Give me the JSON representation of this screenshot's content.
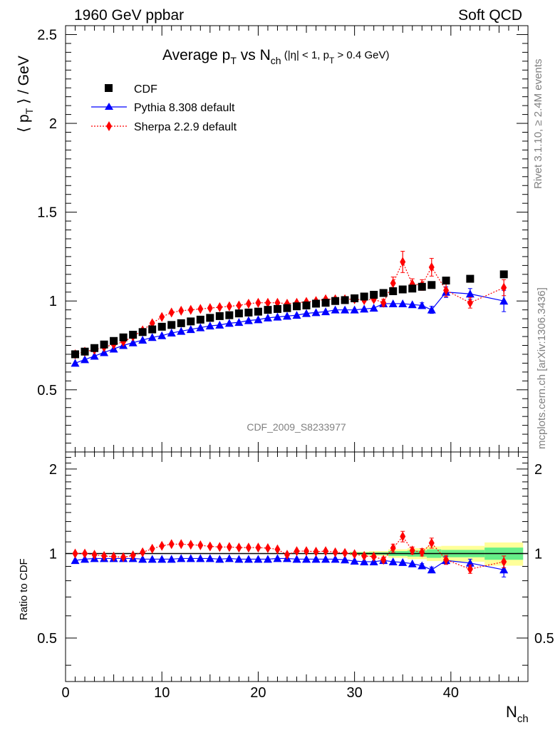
{
  "header": {
    "left": "1960 GeV ppbar",
    "right": "Soft QCD"
  },
  "side": {
    "rivet": "Rivet 3.1.10, ≥ 2.4M events",
    "mcplots": "mcplots.cern.ch [arXiv:1306.3436]"
  },
  "chart_data": {
    "type": "scatter",
    "title": {
      "main": "Average p",
      "sub_T": "T",
      "vs": " vs N",
      "sub_ch": "ch",
      "cuts_a": " (|η| < 1, p",
      "cuts_sub": "T",
      "cuts_b": " > 0.4 GeV)"
    },
    "analysis_label": "CDF_2009_S8233977",
    "xlabel": {
      "main": "N",
      "sub": "ch"
    },
    "ylabel": {
      "pre": "⟨ p",
      "sub": "T",
      "post": " ⟩ / GeV"
    },
    "ratio_ylabel": "Ratio to CDF",
    "xlim": [
      0,
      48
    ],
    "ylim": [
      0.15,
      2.55
    ],
    "ratio_ylim": [
      0.35,
      2.3
    ],
    "x_ticks": [
      "0",
      "10",
      "20",
      "30",
      "40"
    ],
    "y_ticks": [
      "0.5",
      "1",
      "1.5",
      "2",
      "2.5"
    ],
    "ratio_ticks": [
      "0.5",
      "1",
      "2"
    ],
    "legend": [
      {
        "name": "CDF",
        "color": "#000000",
        "marker": "square"
      },
      {
        "name": "Pythia 8.308 default",
        "color": "#0000ff",
        "marker": "triangle"
      },
      {
        "name": "Sherpa 2.2.9 default",
        "color": "#ff0000",
        "marker": "diamond"
      }
    ],
    "series": [
      {
        "name": "CDF",
        "x": [
          1,
          2,
          3,
          4,
          5,
          6,
          7,
          8,
          9,
          10,
          11,
          12,
          13,
          14,
          15,
          16,
          17,
          18,
          19,
          20,
          21,
          22,
          23,
          24,
          25,
          26,
          27,
          28,
          29,
          30,
          31,
          32,
          33,
          34,
          35,
          36,
          37,
          38,
          39.5,
          42,
          45.5
        ],
        "y": [
          0.7,
          0.715,
          0.735,
          0.755,
          0.775,
          0.795,
          0.81,
          0.825,
          0.84,
          0.855,
          0.865,
          0.875,
          0.885,
          0.895,
          0.905,
          0.915,
          0.92,
          0.93,
          0.935,
          0.94,
          0.95,
          0.955,
          0.96,
          0.97,
          0.975,
          0.985,
          0.99,
          1.0,
          1.005,
          1.015,
          1.025,
          1.035,
          1.045,
          1.055,
          1.065,
          1.07,
          1.08,
          1.09,
          1.115,
          1.125,
          1.15
        ]
      },
      {
        "name": "Pythia 8.308 default",
        "x": [
          1,
          2,
          3,
          4,
          5,
          6,
          7,
          8,
          9,
          10,
          11,
          12,
          13,
          14,
          15,
          16,
          17,
          18,
          19,
          20,
          21,
          22,
          23,
          24,
          25,
          26,
          27,
          28,
          29,
          30,
          31,
          32,
          33,
          34,
          35,
          36,
          37,
          38,
          39.5,
          42,
          45.5
        ],
        "y": [
          0.65,
          0.67,
          0.69,
          0.71,
          0.73,
          0.75,
          0.765,
          0.78,
          0.795,
          0.805,
          0.82,
          0.83,
          0.84,
          0.85,
          0.86,
          0.865,
          0.875,
          0.88,
          0.89,
          0.895,
          0.905,
          0.91,
          0.915,
          0.92,
          0.93,
          0.935,
          0.94,
          0.95,
          0.95,
          0.95,
          0.955,
          0.96,
          0.985,
          0.985,
          0.985,
          0.98,
          0.975,
          0.95,
          1.05,
          1.04,
          1.0
        ],
        "err": [
          0,
          0,
          0,
          0,
          0,
          0,
          0,
          0,
          0,
          0,
          0,
          0,
          0,
          0,
          0,
          0,
          0,
          0,
          0,
          0,
          0,
          0,
          0,
          0,
          0,
          0,
          0,
          0,
          0,
          0,
          0,
          0,
          0,
          0,
          0,
          0,
          0.015,
          0.02,
          0.03,
          0.03,
          0.06
        ]
      },
      {
        "name": "Sherpa 2.2.9 default",
        "x": [
          1,
          2,
          3,
          4,
          5,
          6,
          7,
          8,
          9,
          10,
          11,
          12,
          13,
          14,
          15,
          16,
          17,
          18,
          19,
          20,
          21,
          22,
          23,
          24,
          25,
          26,
          27,
          28,
          29,
          30,
          31,
          32,
          33,
          34,
          35,
          36,
          37,
          38,
          39.5,
          42,
          45.5
        ],
        "y": [
          0.7,
          0.715,
          0.725,
          0.74,
          0.755,
          0.77,
          0.8,
          0.835,
          0.875,
          0.91,
          0.935,
          0.945,
          0.95,
          0.955,
          0.96,
          0.965,
          0.97,
          0.975,
          0.985,
          0.99,
          0.99,
          0.99,
          0.985,
          0.99,
          0.995,
          1.0,
          1.01,
          1.01,
          1.01,
          1.01,
          1.005,
          1.01,
          0.99,
          1.1,
          1.22,
          1.095,
          1.09,
          1.19,
          1.06,
          0.99,
          1.075
        ],
        "err": [
          0,
          0,
          0,
          0,
          0,
          0,
          0,
          0,
          0,
          0,
          0,
          0,
          0,
          0,
          0,
          0,
          0,
          0,
          0,
          0,
          0,
          0,
          0,
          0,
          0,
          0,
          0,
          0,
          0,
          0,
          0.01,
          0.01,
          0.02,
          0.035,
          0.06,
          0.03,
          0.03,
          0.05,
          0.035,
          0.03,
          0.045
        ]
      }
    ],
    "ratio_series": [
      {
        "name": "Pythia 8.308 default",
        "y": [
          0.945,
          0.955,
          0.96,
          0.96,
          0.96,
          0.96,
          0.96,
          0.955,
          0.955,
          0.955,
          0.955,
          0.96,
          0.96,
          0.96,
          0.96,
          0.955,
          0.96,
          0.955,
          0.955,
          0.955,
          0.955,
          0.96,
          0.96,
          0.955,
          0.955,
          0.955,
          0.955,
          0.955,
          0.95,
          0.94,
          0.935,
          0.935,
          0.945,
          0.935,
          0.93,
          0.92,
          0.905,
          0.875,
          0.945,
          0.925,
          0.875
        ],
        "err": [
          0,
          0,
          0,
          0,
          0,
          0,
          0,
          0,
          0,
          0,
          0,
          0,
          0,
          0,
          0,
          0,
          0,
          0,
          0,
          0,
          0,
          0,
          0,
          0,
          0,
          0,
          0,
          0,
          0,
          0,
          0,
          0,
          0,
          0,
          0,
          0,
          0.015,
          0.02,
          0.03,
          0.03,
          0.05
        ]
      },
      {
        "name": "Sherpa 2.2.9 default",
        "y": [
          1.0,
          1.0,
          0.99,
          0.98,
          0.975,
          0.97,
          0.985,
          1.01,
          1.04,
          1.065,
          1.08,
          1.08,
          1.075,
          1.07,
          1.06,
          1.055,
          1.055,
          1.05,
          1.05,
          1.05,
          1.045,
          1.035,
          0.99,
          1.02,
          1.02,
          1.015,
          1.02,
          1.01,
          1.005,
          0.995,
          0.98,
          0.975,
          0.95,
          1.045,
          1.15,
          1.025,
          1.01,
          1.09,
          0.95,
          0.88,
          0.935
        ],
        "err": [
          0,
          0,
          0,
          0,
          0,
          0,
          0,
          0,
          0,
          0,
          0,
          0,
          0,
          0,
          0,
          0,
          0,
          0,
          0,
          0,
          0,
          0,
          0,
          0,
          0,
          0,
          0,
          0,
          0,
          0,
          0.01,
          0.01,
          0.02,
          0.035,
          0.05,
          0.03,
          0.03,
          0.045,
          0.035,
          0.03,
          0.045
        ]
      }
    ],
    "ratio_bands": [
      {
        "x0": 29.5,
        "x1": 31.5,
        "yellow": [
          0.985,
          1.015
        ],
        "green": [
          0.99,
          1.01
        ]
      },
      {
        "x0": 31.5,
        "x1": 33.5,
        "yellow": [
          0.98,
          1.02
        ],
        "green": [
          0.99,
          1.01
        ]
      },
      {
        "x0": 33.5,
        "x1": 35.5,
        "yellow": [
          0.965,
          1.035
        ],
        "green": [
          0.98,
          1.02
        ]
      },
      {
        "x0": 35.5,
        "x1": 37.5,
        "yellow": [
          0.955,
          1.045
        ],
        "green": [
          0.975,
          1.025
        ]
      },
      {
        "x0": 37.5,
        "x1": 39.0,
        "yellow": [
          0.94,
          1.06
        ],
        "green": [
          0.965,
          1.035
        ]
      },
      {
        "x0": 39.0,
        "x1": 43.5,
        "yellow": [
          0.935,
          1.065
        ],
        "green": [
          0.97,
          1.03
        ]
      },
      {
        "x0": 43.5,
        "x1": 47.5,
        "yellow": [
          0.905,
          1.095
        ],
        "green": [
          0.95,
          1.05
        ]
      }
    ],
    "colors": {
      "data": "#000000",
      "pythia": "#0000ff",
      "sherpa": "#ff0000",
      "band_yellow": "#ffff99",
      "band_green": "#66ee88"
    }
  }
}
